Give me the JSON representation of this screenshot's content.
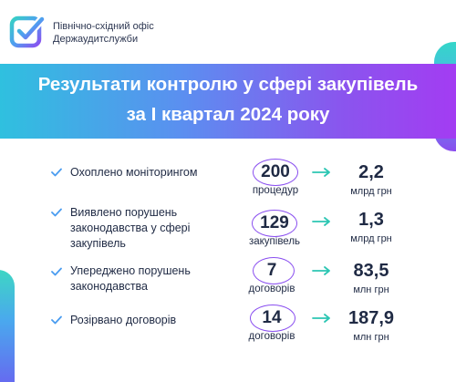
{
  "header": {
    "org_line1": "Північно-східний офіс",
    "org_line2": "Держаудитслужби",
    "logo_icon": "check-square-logo"
  },
  "banner": {
    "title_line1": "Результати контролю у сфері закупівель",
    "title_line2": "за I квартал 2024 року"
  },
  "colors": {
    "text": "#1f2a44",
    "check": "#4a9cf0",
    "oval": "#8a4ff0",
    "arrow": "#2cc6b3",
    "gradient_start": "#2fc0df",
    "gradient_end": "#a33cf2"
  },
  "rows": [
    {
      "label_lines": [
        "Охоплено моніторингом"
      ],
      "number": "200",
      "number_unit": "процедур",
      "value": "2,2",
      "value_unit": "млрд грн"
    },
    {
      "label_lines": [
        "Виявлено порушень",
        "законодавства у сфері",
        "закупівель"
      ],
      "number": "129",
      "number_unit": "закупівель",
      "value": "1,3",
      "value_unit": "млрд грн"
    },
    {
      "label_lines": [
        "Упереджено порушень",
        "законодавства"
      ],
      "number": "7",
      "number_unit": "договорів",
      "value": "83,5",
      "value_unit": "млн грн"
    },
    {
      "label_lines": [
        "Розірвано договорів"
      ],
      "number": "14",
      "number_unit": "договорів",
      "value": "187,9",
      "value_unit": "млн грн"
    }
  ]
}
